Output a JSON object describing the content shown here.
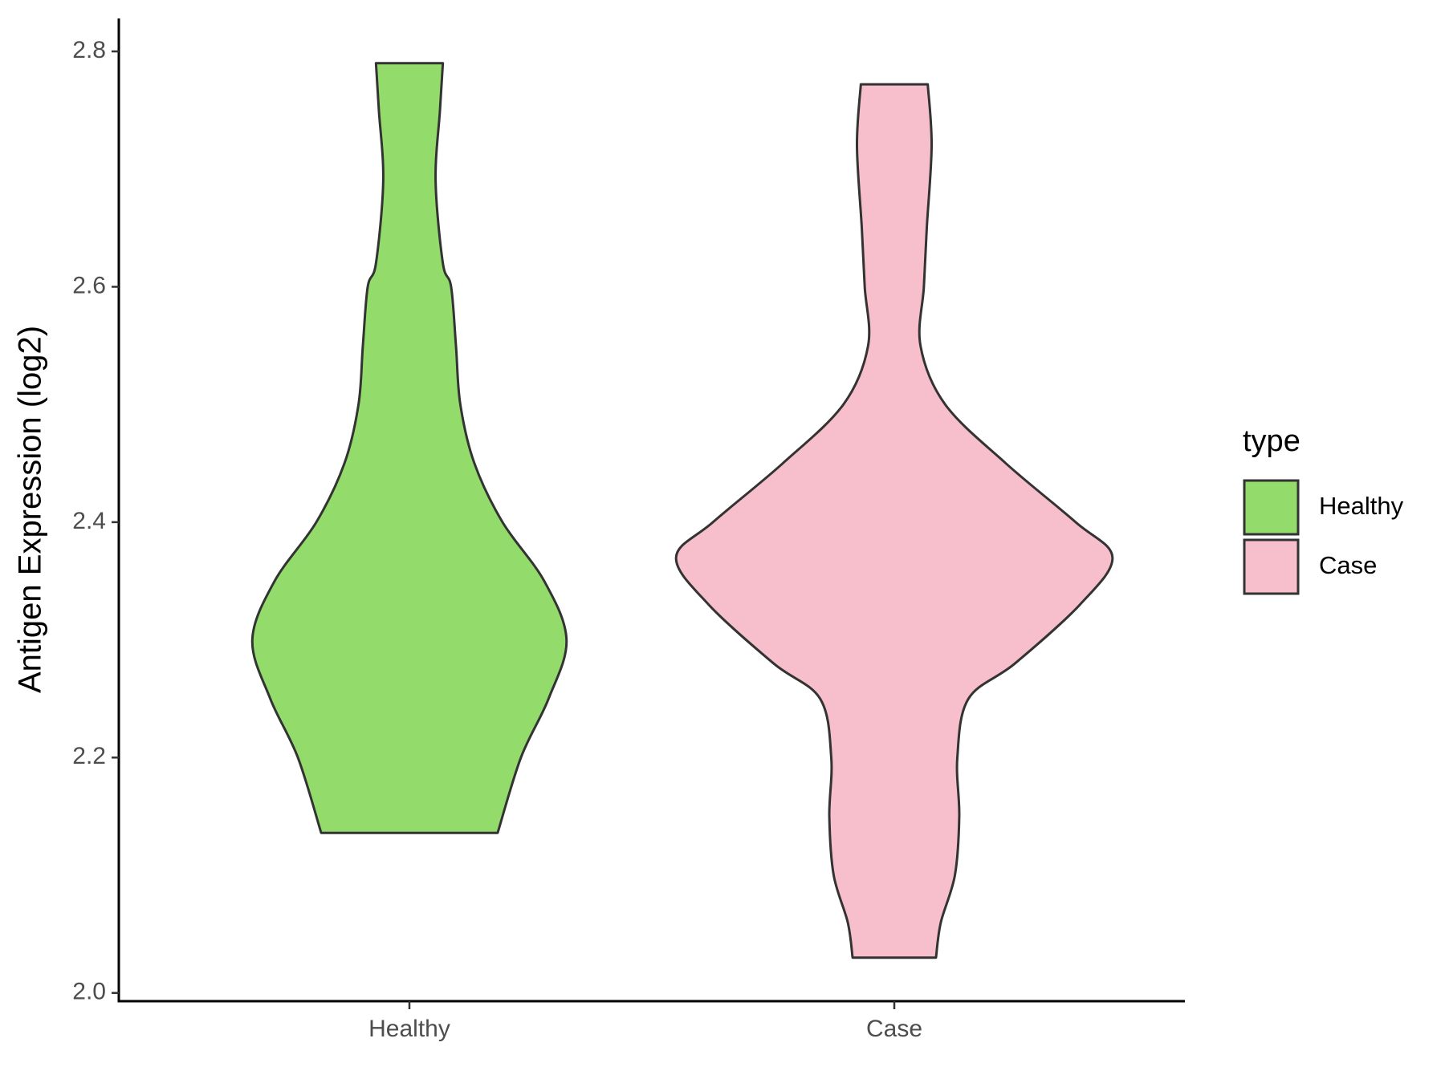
{
  "chart_data": {
    "type": "violin",
    "y_label": "Antigen Expression (log2)",
    "categories": [
      "Healthy",
      "Case"
    ],
    "legend_title": "type",
    "legend": "right",
    "ylim": [
      1.993,
      2.828
    ],
    "yticks": [
      {
        "value": 2.0,
        "label": "2.0"
      },
      2.2,
      2.4,
      2.6,
      {
        "value": 2.8,
        "label": "2.8"
      }
    ],
    "series": [
      {
        "name": "Healthy",
        "color": "#93dc6b",
        "values": [
          2.79,
          2.75,
          2.69,
          2.62,
          2.6,
          2.55,
          2.5,
          2.45,
          2.4,
          2.35,
          2.3,
          2.25,
          2.2,
          2.136
        ],
        "widths": [
          0.069,
          0.063,
          0.054,
          0.069,
          0.086,
          0.096,
          0.105,
          0.134,
          0.192,
          0.278,
          0.324,
          0.287,
          0.23,
          0.182
        ]
      },
      {
        "name": "Case",
        "color": "#f7bfcb",
        "values": [
          2.772,
          2.72,
          2.65,
          2.6,
          2.55,
          2.5,
          2.45,
          2.4,
          2.37,
          2.33,
          2.28,
          2.25,
          2.2,
          2.15,
          2.1,
          2.06,
          2.03
        ],
        "widths": [
          0.069,
          0.077,
          0.067,
          0.061,
          0.054,
          0.105,
          0.23,
          0.374,
          0.45,
          0.383,
          0.249,
          0.153,
          0.13,
          0.134,
          0.125,
          0.096,
          0.086
        ]
      }
    ]
  }
}
